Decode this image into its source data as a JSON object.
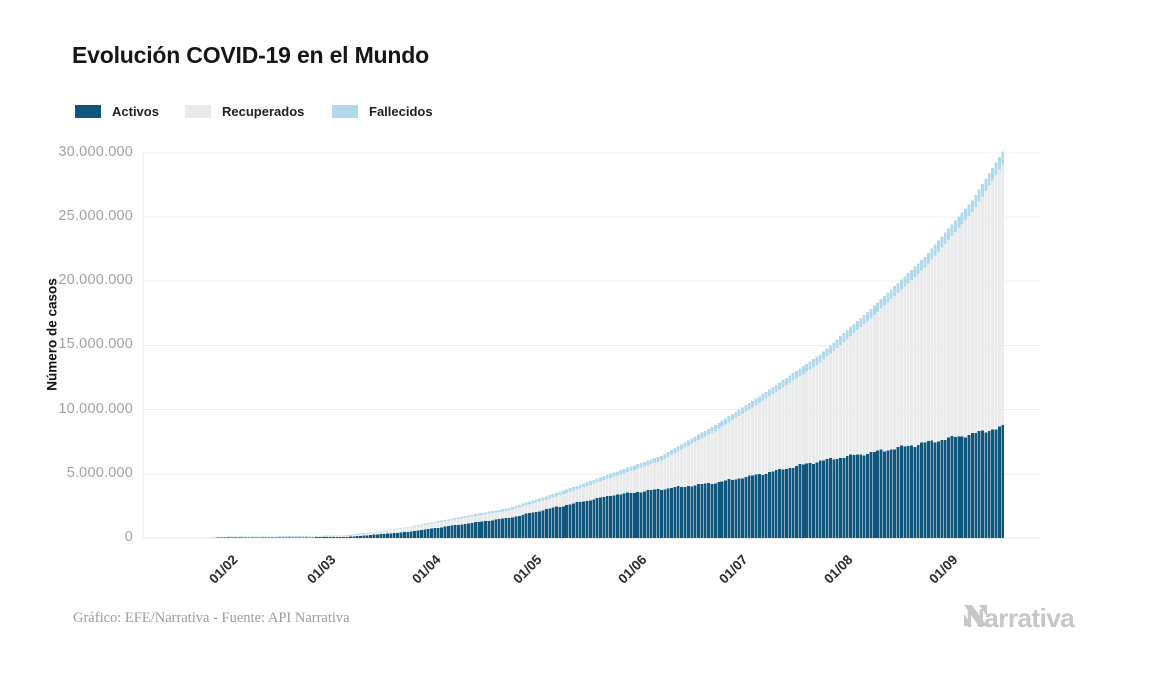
{
  "header": {
    "title": "Evolución COVID-19 en el Mundo"
  },
  "chart_data": {
    "type": "area",
    "stacked": true,
    "render_style": "daily bars stacked, stepped edges",
    "title": "Evolución COVID-19 en el Mundo",
    "xlabel": "",
    "ylabel": "Número de casos",
    "grid": "horizontal",
    "legend_position": "top-left",
    "ylim": [
      0,
      30000000
    ],
    "y_tick_labels": [
      "0",
      "5.000.000",
      "10.000.000",
      "15.000.000",
      "20.000.000",
      "25.000.000",
      "30.000.000"
    ],
    "y_tick_values": [
      0,
      5000000,
      10000000,
      15000000,
      20000000,
      25000000,
      30000000
    ],
    "x_tick_labels": [
      "01/02",
      "01/03",
      "01/04",
      "01/05",
      "01/06",
      "01/07",
      "01/08",
      "01/09"
    ],
    "x_tick_days": [
      10,
      39,
      70,
      100,
      131,
      161,
      192,
      223
    ],
    "x_start_date": "22/01/2020",
    "x_end_date": "24/09/2020",
    "anchor_dates": [
      "22/01",
      "01/02",
      "15/02",
      "01/03",
      "15/03",
      "01/04",
      "15/04",
      "01/05",
      "15/05",
      "01/06",
      "15/06",
      "01/07",
      "15/07",
      "01/08",
      "15/08",
      "01/09",
      "15/09",
      "24/09"
    ],
    "anchor_days": [
      0,
      10,
      24,
      39,
      53,
      70,
      84,
      100,
      114,
      131,
      145,
      161,
      175,
      192,
      206,
      223,
      237,
      246
    ],
    "series": [
      {
        "name": "Activos",
        "color": "#0F567D",
        "values_millions": [
          0.001,
          0.009,
          0.05,
          0.045,
          0.1,
          0.47,
          1.0,
          1.56,
          2.4,
          3.35,
          3.8,
          4.3,
          5.0,
          6.0,
          6.6,
          7.4,
          8.1,
          8.65
        ]
      },
      {
        "name": "Recuperados",
        "color": "#E8EAEB",
        "values_millions": [
          0.0,
          0.003,
          0.018,
          0.042,
          0.063,
          0.33,
          0.44,
          0.6,
          0.84,
          1.42,
          2.22,
          4.04,
          5.67,
          7.66,
          10.28,
          13.67,
          17.27,
          20.45
        ]
      },
      {
        "name": "Fallecidos",
        "color": "#B0DAEC",
        "values_millions": [
          0.0,
          0.0003,
          0.002,
          0.003,
          0.007,
          0.06,
          0.12,
          0.18,
          0.26,
          0.33,
          0.38,
          0.46,
          0.53,
          0.64,
          0.72,
          0.83,
          0.93,
          1.0
        ]
      }
    ],
    "totals_millions": [
      0.001,
      0.012,
      0.07,
      0.09,
      0.17,
      0.86,
      1.56,
      2.34,
      3.5,
      5.1,
      6.4,
      8.8,
      11.2,
      14.3,
      17.6,
      21.9,
      26.3,
      30.1
    ],
    "final_total_cases": 30100000,
    "gridline_color": "#ededed",
    "background_color": "#ffffff"
  },
  "footer": {
    "credit": "Gráfico: EFE/Narrativa - Fuente: API Narrativa",
    "logo_text": "Narrativa"
  }
}
